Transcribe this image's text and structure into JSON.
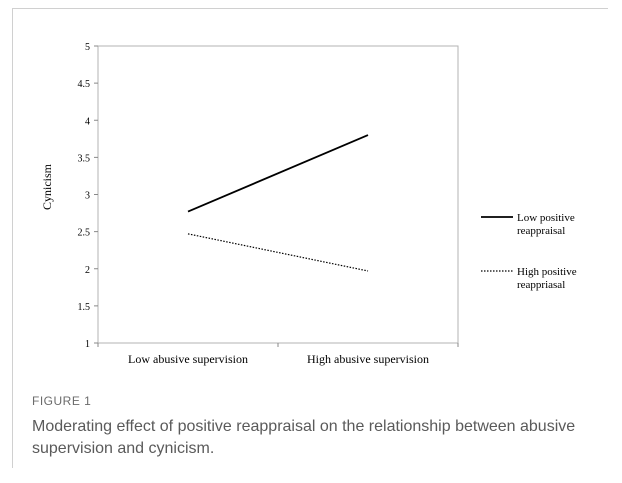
{
  "figure": {
    "label": "FIGURE 1",
    "caption": "Moderating effect of positive reappraisal on the relationship between abusive supervision and cynicism."
  },
  "chart_data": {
    "type": "line",
    "ylabel": "Cynicism",
    "xlabel": "",
    "categories": [
      "Low abusive supervision",
      "High abusive supervision"
    ],
    "ylim": [
      1,
      5
    ],
    "yticks": [
      "1",
      "1.5",
      "2",
      "2.5",
      "3",
      "3.5",
      "4",
      "4.5",
      "5"
    ],
    "grid": false,
    "legend_position": "right",
    "series": [
      {
        "name": "Low positive reappraisal",
        "name_lines": [
          "Low positive",
          "reappraisal"
        ],
        "values": [
          2.77,
          3.8
        ],
        "style": "solid",
        "color": "#000000"
      },
      {
        "name": "High positive reappriasal",
        "name_lines": [
          "High positive",
          "reappriasal"
        ],
        "values": [
          2.47,
          1.97
        ],
        "style": "dotted",
        "color": "#000000"
      }
    ]
  }
}
